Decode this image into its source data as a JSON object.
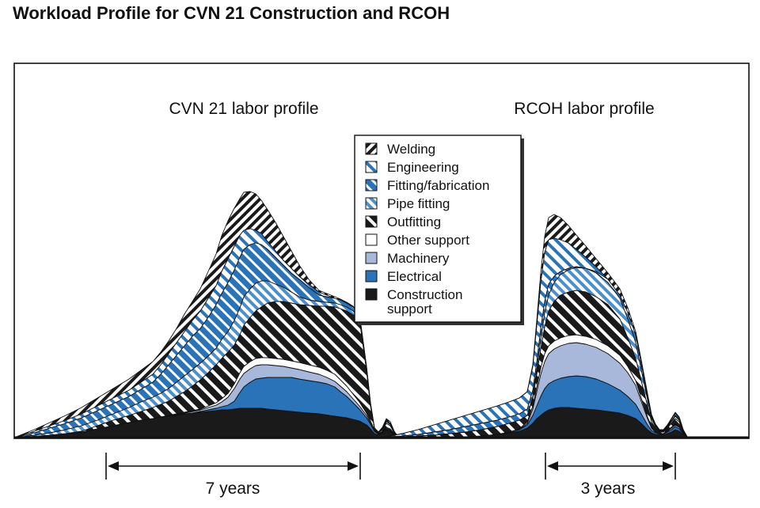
{
  "title": "Workload Profile for CVN 21 Construction and RCOH",
  "chart_data": {
    "type": "area",
    "stacked": true,
    "x_unit": "relative project time",
    "y_unit": "relative labor (unlabeled)",
    "layers_bottom_to_top": [
      "Construction support",
      "Electrical",
      "Machinery",
      "Other support",
      "Outfitting",
      "Pipe fitting",
      "Fitting/fabrication",
      "Engineering",
      "Welding"
    ],
    "legend": [
      {
        "label": "Welding",
        "pattern": "hatch-welding"
      },
      {
        "label": "Engineering",
        "pattern": "hatch-engineering"
      },
      {
        "label": "Fitting/fabrication",
        "pattern": "hatch-fitting"
      },
      {
        "label": "Pipe fitting",
        "pattern": "hatch-pipe"
      },
      {
        "label": "Outfitting",
        "pattern": "hatch-outfitting"
      },
      {
        "label": "Other support",
        "pattern": "solid-white"
      },
      {
        "label": "Machinery",
        "pattern": "solid-lightblue"
      },
      {
        "label": "Electrical",
        "pattern": "solid-blue"
      },
      {
        "label": "Construction\nsupport",
        "pattern": "solid-black"
      }
    ],
    "charts": [
      {
        "name": "CVN 21 labor profile",
        "duration_label": "7 years",
        "x": [
          0,
          10,
          25,
          45,
          65,
          85,
          105,
          125,
          145,
          160,
          175,
          185,
          195,
          205,
          215,
          225,
          235,
          245,
          255,
          262,
          270,
          278,
          285,
          290,
          298,
          305,
          312,
          320,
          330,
          340,
          350,
          360,
          372,
          385,
          395,
          405,
          412,
          420,
          428,
          436,
          445,
          450,
          455,
          460,
          465,
          470,
          475,
          480,
          485,
          490
        ],
        "cumulative": [
          [
            0,
            0.5,
            1.5,
            3,
            5,
            7,
            11,
            15,
            19,
            22,
            24,
            26,
            27,
            28,
            30,
            31,
            32,
            33,
            34,
            35,
            35,
            36,
            37,
            37,
            37,
            37,
            37,
            36,
            35,
            34,
            33,
            32,
            31,
            30,
            28.5,
            27,
            26,
            25,
            23,
            21,
            16,
            11,
            5,
            3,
            6,
            10,
            8,
            3,
            0.5,
            0
          ],
          [
            0,
            0.5,
            1.5,
            3,
            5,
            7,
            11,
            15,
            19,
            22,
            24,
            26,
            27,
            28,
            30,
            31,
            33,
            35,
            37,
            39,
            41,
            46,
            57,
            64,
            70,
            74,
            75,
            76,
            76,
            76,
            76,
            74,
            72,
            70,
            68,
            64,
            58,
            52,
            44,
            36,
            25,
            17,
            8,
            4,
            7,
            11,
            9,
            4,
            0.6,
            0
          ],
          [
            0,
            0.5,
            1.5,
            3,
            5,
            7,
            11,
            15,
            19,
            22,
            24,
            26,
            27.5,
            29,
            31,
            33,
            35,
            38,
            41,
            45,
            51,
            62,
            74,
            81,
            87,
            91,
            92,
            92,
            91,
            90,
            88,
            86,
            83,
            80,
            76,
            71,
            65,
            58,
            49,
            40,
            28,
            19,
            9,
            4.5,
            7.5,
            12,
            10,
            4.5,
            0.7,
            0
          ],
          [
            0,
            0.5,
            1.5,
            3,
            5,
            7,
            11,
            15,
            19,
            22,
            24,
            26,
            28,
            30,
            32,
            34,
            36,
            40,
            44,
            49,
            56,
            68,
            82,
            90,
            96,
            100,
            101,
            101,
            100,
            99,
            97,
            95,
            92,
            89,
            85,
            80,
            73,
            65,
            55,
            45,
            31,
            21,
            10,
            5,
            8,
            13,
            11,
            5,
            0.8,
            0
          ],
          [
            0,
            0.5,
            1.5,
            3,
            5,
            8,
            15,
            22,
            28,
            33,
            38,
            42,
            46,
            52,
            58,
            65,
            73,
            82,
            92,
            100,
            108,
            117,
            130,
            142,
            152,
            160,
            165,
            170,
            172,
            172,
            170,
            168,
            167,
            166,
            166,
            165,
            163,
            160,
            155,
            150,
            85,
            40,
            12,
            6,
            10,
            18,
            15,
            6,
            1,
            0
          ],
          [
            0,
            1,
            3,
            6,
            10,
            15,
            22,
            30,
            38,
            45,
            51,
            56,
            62,
            70,
            78,
            86,
            94,
            103,
            113,
            124,
            134,
            148,
            164,
            178,
            188,
            195,
            198,
            198,
            194,
            190,
            184,
            178,
            174,
            172,
            171,
            170,
            168,
            165,
            160,
            152,
            86,
            41,
            12,
            7,
            11,
            20,
            17,
            7,
            1,
            0
          ],
          [
            0,
            2,
            6,
            12,
            18,
            25,
            34,
            43,
            52,
            61,
            70,
            80,
            92,
            104,
            116,
            128,
            138,
            152,
            168,
            182,
            196,
            212,
            228,
            238,
            244,
            246,
            244,
            238,
            228,
            218,
            208,
            200,
            190,
            180,
            178,
            176,
            174,
            170,
            165,
            155,
            88,
            42,
            12,
            7,
            12,
            22,
            18,
            7,
            1,
            0
          ],
          [
            0,
            3,
            8,
            15,
            22,
            30,
            40,
            50,
            60,
            70,
            80,
            92,
            106,
            120,
            134,
            148,
            160,
            176,
            192,
            210,
            226,
            242,
            256,
            262,
            264,
            262,
            258,
            248,
            236,
            224,
            214,
            204,
            194,
            184,
            180,
            176,
            174,
            170,
            165,
            156,
            89,
            43,
            12,
            7,
            12,
            22,
            18,
            7,
            1,
            0
          ],
          [
            0,
            4,
            10,
            19,
            28,
            38,
            50,
            62,
            74,
            85,
            96,
            108,
            122,
            138,
            156,
            172,
            188,
            210,
            232,
            255,
            274,
            290,
            302,
            310,
            311,
            308,
            300,
            288,
            272,
            254,
            236,
            218,
            200,
            186,
            182,
            178,
            175,
            171,
            166,
            157,
            90,
            44,
            12,
            7,
            13,
            24,
            20,
            8,
            1,
            0
          ]
        ]
      },
      {
        "name": "RCOH labor profile",
        "duration_label": "3 years",
        "x": [
          0,
          15,
          30,
          50,
          70,
          90,
          110,
          130,
          150,
          165,
          178,
          188,
          195,
          200,
          205,
          210,
          215,
          222,
          230,
          240,
          250,
          262,
          275,
          290,
          305,
          315,
          325,
          332,
          340,
          345,
          350,
          355,
          360,
          365,
          370,
          375,
          380,
          385,
          390,
          395,
          400,
          405,
          410,
          415,
          420,
          425,
          430
        ],
        "cumulative": [
          [
            0,
            0,
            0,
            0,
            0,
            0,
            1,
            2,
            4,
            6,
            8,
            12,
            18,
            24,
            28,
            32,
            35,
            37,
            38,
            38,
            37,
            36,
            35,
            33,
            31,
            28,
            24,
            18,
            10,
            6,
            4,
            3,
            3,
            5,
            7,
            10,
            8,
            4,
            1,
            0,
            0,
            0,
            0,
            0,
            0,
            0,
            0
          ],
          [
            0,
            0,
            0,
            0,
            0,
            0,
            1,
            2,
            4,
            7,
            10,
            16,
            28,
            40,
            52,
            62,
            68,
            72,
            75,
            77,
            78,
            77,
            74,
            68,
            60,
            52,
            42,
            30,
            16,
            9,
            6,
            4,
            4,
            7,
            10,
            14,
            11,
            5,
            1,
            0,
            0,
            0,
            0,
            0,
            0,
            0,
            0
          ],
          [
            0,
            0,
            0,
            0,
            0,
            0,
            1,
            2,
            4,
            7,
            10,
            18,
            36,
            58,
            80,
            96,
            106,
            112,
            116,
            119,
            120,
            118,
            114,
            106,
            94,
            82,
            66,
            46,
            24,
            12,
            7,
            5,
            5,
            8,
            12,
            16,
            13,
            6,
            1,
            0,
            0,
            0,
            0,
            0,
            0,
            0,
            0
          ],
          [
            0,
            0,
            0,
            0,
            0,
            0,
            1,
            2,
            4,
            7,
            11,
            20,
            40,
            64,
            88,
            106,
            116,
            122,
            126,
            129,
            130,
            128,
            124,
            116,
            104,
            90,
            72,
            50,
            26,
            13,
            8,
            5,
            5,
            9,
            13,
            17,
            14,
            6,
            1,
            0,
            0,
            0,
            0,
            0,
            0,
            0,
            0
          ],
          [
            0,
            0.5,
            1,
            2,
            3,
            5,
            7,
            10,
            14,
            18,
            22,
            28,
            50,
            80,
            112,
            140,
            160,
            172,
            180,
            184,
            186,
            184,
            178,
            168,
            150,
            126,
            100,
            72,
            40,
            20,
            12,
            7,
            7,
            12,
            18,
            24,
            20,
            8,
            1,
            0,
            0,
            0,
            0,
            0,
            0,
            0,
            0
          ],
          [
            0,
            0.5,
            1,
            2,
            3,
            5,
            7,
            10,
            14,
            18,
            22,
            28,
            52,
            86,
            124,
            158,
            180,
            196,
            206,
            212,
            215,
            214,
            208,
            196,
            176,
            150,
            120,
            86,
            48,
            24,
            14,
            8,
            8,
            13,
            20,
            27,
            22,
            9,
            1,
            0,
            0,
            0,
            0,
            0,
            0,
            0,
            0
          ],
          [
            0,
            1,
            2,
            4,
            7,
            10,
            14,
            18,
            22,
            26,
            30,
            36,
            60,
            96,
            138,
            172,
            194,
            204,
            210,
            214,
            216,
            214,
            210,
            200,
            184,
            160,
            130,
            94,
            52,
            26,
            15,
            9,
            9,
            14,
            21,
            28,
            23,
            9,
            1,
            0,
            0,
            0,
            0,
            0,
            0,
            0,
            0
          ],
          [
            0,
            2,
            5,
            10,
            16,
            22,
            28,
            34,
            40,
            45,
            50,
            58,
            90,
            142,
            196,
            234,
            250,
            252,
            250,
            246,
            238,
            228,
            216,
            200,
            180,
            158,
            130,
            96,
            54,
            28,
            16,
            10,
            10,
            15,
            23,
            31,
            25,
            10,
            1,
            0,
            0,
            0,
            0,
            0,
            0,
            0,
            0
          ],
          [
            0,
            2,
            5,
            10,
            16,
            22,
            28,
            34,
            40,
            45,
            50,
            58,
            92,
            148,
            208,
            254,
            278,
            282,
            278,
            268,
            256,
            242,
            226,
            208,
            188,
            164,
            134,
            98,
            55,
            29,
            17,
            10,
            10,
            16,
            24,
            32,
            26,
            10,
            1,
            0,
            0,
            0,
            0,
            0,
            0,
            0,
            0
          ]
        ]
      }
    ]
  }
}
